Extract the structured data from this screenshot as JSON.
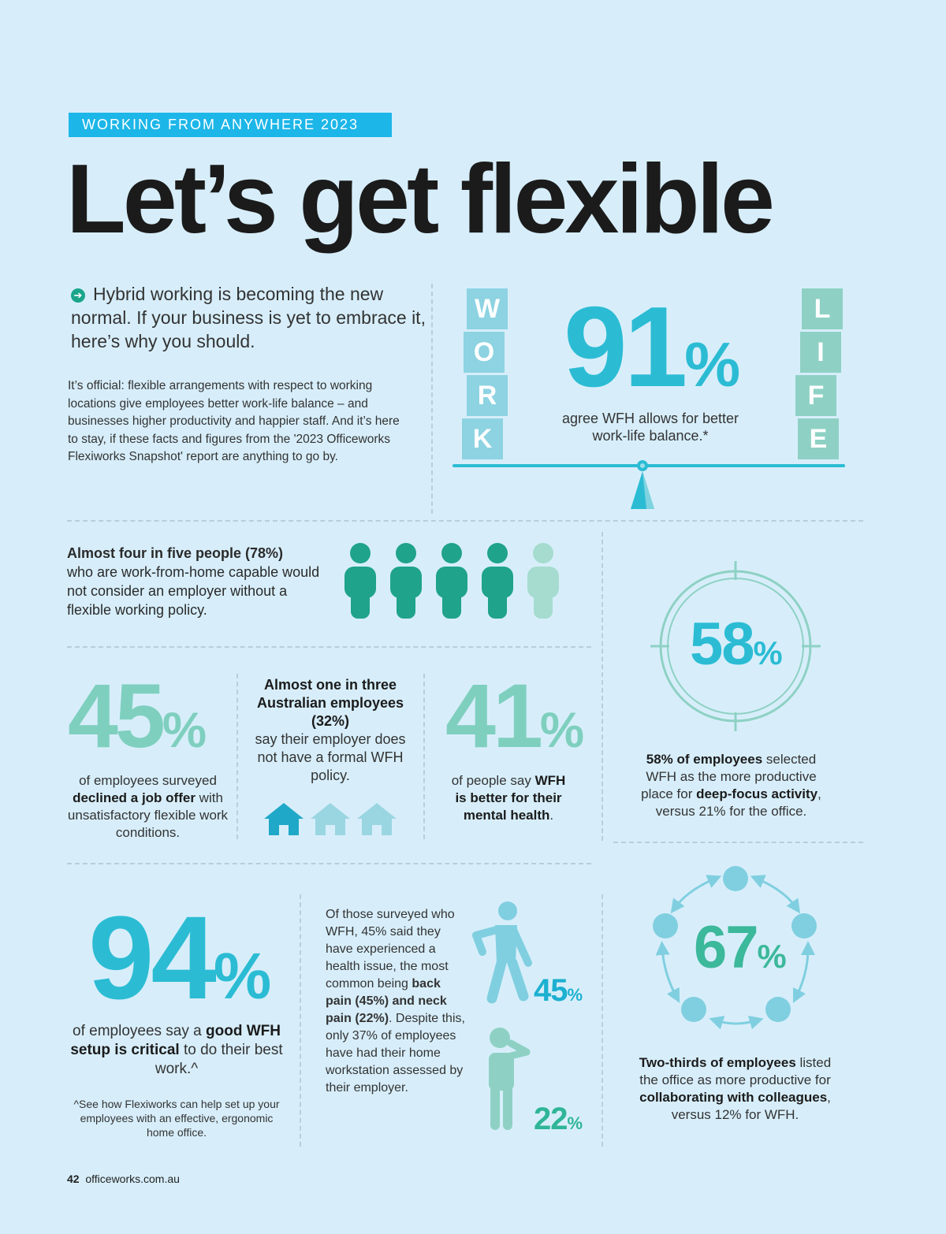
{
  "header": {
    "tag": "WORKING FROM ANYWHERE 2023",
    "title": "Let’s get flexible"
  },
  "intro": {
    "lead": "Hybrid working is becoming the new normal. If your business is yet to embrace it, here’s why you should.",
    "body": "It’s official: flexible arrangements with respect to working locations give employees better work-life balance – and businesses higher productivity and happier staff. And it’s here to stay, if these facts and figures from the '2023 Officeworks Flexiworks Snapshot' report are anything to go by."
  },
  "balance": {
    "work_letters": [
      "W",
      "O",
      "R",
      "K"
    ],
    "life_letters": [
      "L",
      "I",
      "F",
      "E"
    ],
    "value": "91",
    "pct": "%",
    "caption": "agree WFH allows for better work-life balance.*"
  },
  "people": {
    "bold": "Almost four in five people (78%)",
    "text": "who are work-from-home capable would not consider an employer without a flexible working policy.",
    "filled": 4,
    "total": 5
  },
  "deep_focus": {
    "value": "58",
    "pct": "%",
    "c1": "58% of employees",
    "c2": " selected WFH as the more productive place for ",
    "c3": "deep-focus activity",
    "c4": ", versus 21% for the office."
  },
  "job_offer": {
    "value": "45",
    "pct": "%",
    "c1": "of employees surveyed ",
    "c2": "declined a job offer",
    "c3": " with unsatisfactory flexible work conditions."
  },
  "policy": {
    "bold": "Almost one in three Australian employees (32%)",
    "text": "say their employer does not have a formal WFH policy.",
    "filled": 1,
    "total": 3
  },
  "mental": {
    "value": "41",
    "pct": "%",
    "c1": "of people say ",
    "c2": "WFH is better for their mental health",
    "c3": "."
  },
  "setup": {
    "value": "94",
    "pct": "%",
    "c1": "of employees say a ",
    "c2": "good WFH setup is critical",
    "c3": " to do their best work.^",
    "note": "^See how Flexiworks can help set up your employees with an effective, ergonomic home office."
  },
  "health": {
    "t1": "Of those surveyed who WFH, 45% said they have experienced a health issue, the most common being ",
    "t2": "back pain (45%) and neck pain (22%)",
    "t3": ". Despite this, only 37% of employees have had their home workstation assessed by their employer.",
    "back_value": "45",
    "neck_value": "22",
    "pct": "%"
  },
  "collab": {
    "value": "67",
    "pct": "%",
    "c1": "Two-thirds of employees",
    "c2": " listed the office as more productive for ",
    "c3": "collaborating with colleagues",
    "c4": ", versus 12% for WFH."
  },
  "footer": {
    "page": "42",
    "site": "officeworks.com.au"
  },
  "colors": {
    "background": "#d7eefa",
    "cyan": "#2bbcd4",
    "teal": "#3cb89b",
    "light_teal": "#7fcfbf",
    "tag": "#1db6e8",
    "people": "#1fa38a"
  }
}
